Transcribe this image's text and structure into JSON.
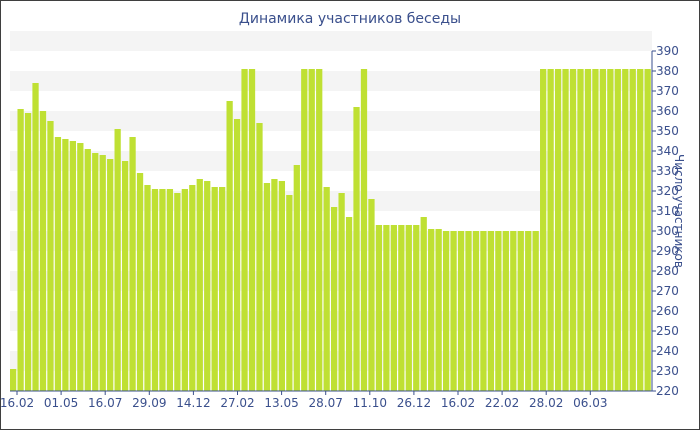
{
  "chart_data": {
    "type": "bar",
    "title": "Динамика участников беседы",
    "xlabel": "",
    "ylabel": "Число участников",
    "ylim": [
      220,
      390
    ],
    "yticks": [
      220,
      230,
      240,
      250,
      260,
      270,
      280,
      290,
      300,
      310,
      320,
      330,
      340,
      350,
      360,
      370,
      380,
      390
    ],
    "xtick_labels": [
      "16.02",
      "01.05",
      "16.07",
      "29.09",
      "14.12",
      "27.02",
      "13.05",
      "28.07",
      "11.10",
      "26.12",
      "16.02",
      "22.02",
      "28.02",
      "06.03"
    ],
    "grid": "horizontal bands",
    "colors": {
      "bar": "#bfe033",
      "band": "#f4f4f4",
      "text": "#3a4f8c",
      "axis": "#3a4f8c"
    },
    "values": [
      231,
      361,
      359,
      374,
      360,
      355,
      347,
      346,
      345,
      344,
      341,
      339,
      338,
      336,
      351,
      335,
      347,
      329,
      323,
      321,
      321,
      321,
      319,
      321,
      323,
      326,
      325,
      322,
      322,
      365,
      356,
      381,
      381,
      354,
      324,
      326,
      325,
      318,
      333,
      381,
      381,
      381,
      322,
      312,
      319,
      307,
      362,
      381,
      316,
      303,
      303,
      303,
      303,
      303,
      303,
      307,
      301,
      301,
      300,
      300,
      300,
      300,
      300,
      300,
      300,
      300,
      300,
      300,
      300,
      300,
      300,
      381,
      381,
      381,
      381,
      381,
      381,
      381,
      381,
      381,
      381,
      381,
      381,
      381,
      381,
      381
    ]
  }
}
